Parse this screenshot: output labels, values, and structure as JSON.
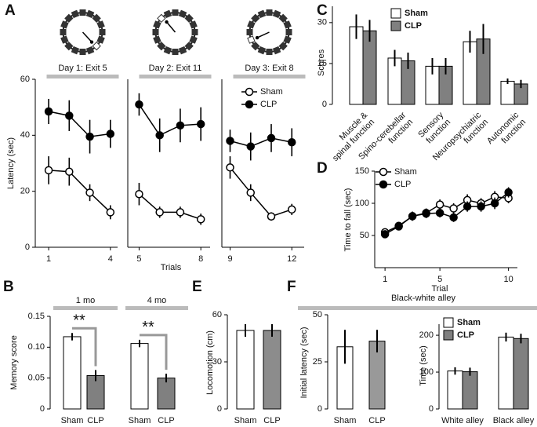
{
  "chart_data": [
    {
      "type": "line",
      "panel": "A",
      "ylabel": "Latency (sec)",
      "xlabel": "Trials",
      "ylim": [
        0,
        60
      ],
      "yticks": [
        0,
        20,
        40,
        60
      ],
      "legend": "upper right",
      "x": [
        1,
        2,
        3,
        4,
        5,
        6,
        7,
        8,
        9,
        10,
        11,
        12
      ],
      "subplots": [
        {
          "title": "Day 1: Exit 5",
          "xlim": [
            0.35,
            4.35
          ],
          "xticks": [
            1,
            4
          ]
        },
        {
          "title": "Day 2: Exit 11",
          "xlim": [
            4.45,
            8.45
          ],
          "xticks": [
            5,
            8
          ]
        },
        {
          "title": "Day 3: Exit 8",
          "xlim": [
            8.6,
            12.6
          ],
          "xticks": [
            9,
            12
          ]
        }
      ],
      "series": [
        {
          "name": "Sham",
          "color": "#ffffff",
          "values": [
            27.5,
            27,
            19.5,
            12.5,
            19,
            12.5,
            12.5,
            10,
            28.5,
            19.5,
            11,
            13.5
          ],
          "errors": [
            5,
            5,
            3,
            2.5,
            4,
            2,
            2,
            2,
            4,
            3,
            1.5,
            2
          ]
        },
        {
          "name": "CLP",
          "color": "#000000",
          "values": [
            48.5,
            47,
            39.5,
            40.5,
            51,
            40,
            43.5,
            44,
            38,
            36,
            39,
            37.5
          ],
          "errors": [
            4.5,
            5.5,
            6,
            5,
            4,
            6,
            6,
            6,
            4,
            5,
            5,
            5
          ]
        }
      ]
    },
    {
      "type": "bar",
      "panel": "B",
      "ylabel": "Memory score",
      "ylim": [
        0,
        0.15
      ],
      "yticks": [
        0,
        0.05,
        {
          "value": 0.1,
          "label": "0.10"
        },
        0.15
      ],
      "group_labels": [
        "1 mo",
        "4 mo"
      ],
      "annotations": [
        "**",
        "**"
      ],
      "categories": [
        "Sham",
        "CLP",
        "Sham",
        "CLP"
      ],
      "values": [
        0.117,
        0.054,
        0.106,
        0.05
      ],
      "errors": [
        0.006,
        0.009,
        0.006,
        0.007
      ],
      "colors": [
        "#ffffff",
        "#808080",
        "#ffffff",
        "#808080"
      ]
    },
    {
      "type": "bar",
      "panel": "C",
      "ylabel": "Scores",
      "ylim": [
        0,
        36
      ],
      "yticks": [
        0,
        15,
        30
      ],
      "legend": "upper center",
      "categories": [
        "Muscle &\nspinal function",
        "Spino-cerebellar\nfunction",
        "Sensory\nfunction",
        "Neuropsychiatric\nfunction",
        "Autonomic\nfunction"
      ],
      "series": [
        {
          "name": "Sham",
          "color": "#ffffff",
          "values": [
            28.5,
            17,
            14,
            23,
            8.5
          ],
          "errors": [
            4.5,
            3,
            3,
            4,
            1
          ]
        },
        {
          "name": "CLP",
          "color": "#808080",
          "values": [
            27,
            16,
            14,
            24,
            7.5
          ],
          "errors": [
            4,
            3,
            3,
            5.5,
            1.5
          ]
        }
      ]
    },
    {
      "type": "line",
      "panel": "D",
      "ylabel": "Time to fall (sec)",
      "xlabel": "Trial",
      "ylim": [
        0,
        150
      ],
      "yticks": [
        50,
        100,
        150
      ],
      "xlim": [
        0.25,
        10.65
      ],
      "xticks": [
        1,
        5,
        10
      ],
      "legend": "upper left",
      "x": [
        1,
        2,
        3,
        4,
        5,
        6,
        7,
        8,
        9,
        10
      ],
      "series": [
        {
          "name": "Sham",
          "color": "#ffffff",
          "values": [
            55,
            65,
            80,
            85,
            98,
            92,
            105,
            100,
            110,
            108
          ],
          "errors": [
            5,
            6,
            7,
            7,
            8,
            8,
            9,
            8,
            9,
            8
          ]
        },
        {
          "name": "CLP",
          "color": "#000000",
          "values": [
            52,
            64,
            80,
            84,
            85,
            78,
            95,
            95,
            100,
            117
          ],
          "errors": [
            4,
            6,
            7,
            7,
            7,
            7,
            8,
            8,
            9,
            8
          ]
        }
      ]
    },
    {
      "type": "bar",
      "panel": "E",
      "ylabel": "Locomotion (cm)",
      "ylim": [
        0,
        60
      ],
      "yticks": [
        0,
        30,
        60
      ],
      "categories": [
        "Sham",
        "CLP"
      ],
      "values": [
        50,
        50
      ],
      "errors": [
        4,
        4
      ],
      "colors": [
        "#ffffff",
        "#8c8c8c"
      ]
    },
    {
      "type": "bar",
      "panel": "F",
      "header": "Black-white alley",
      "ylabel": "Initial latency (sec)",
      "ylim": [
        0,
        50
      ],
      "yticks": [
        0,
        25,
        50
      ],
      "categories": [
        "Sham",
        "CLP"
      ],
      "values": [
        33,
        36
      ],
      "errors": [
        9,
        6
      ],
      "colors": [
        "#ffffff",
        "#999999"
      ]
    },
    {
      "type": "bar",
      "ylabel": "Time (sec)",
      "ylim": [
        0,
        230
      ],
      "yticks": [
        0,
        100,
        200
      ],
      "legend": "upper left",
      "categories": [
        "White alley",
        "Black alley"
      ],
      "series": [
        {
          "name": "Sham",
          "color": "#ffffff",
          "values": [
            103,
            195
          ],
          "errors": [
            10,
            12
          ]
        },
        {
          "name": "CLP",
          "color": "#808080",
          "values": [
            101,
            191
          ],
          "errors": [
            11,
            13
          ]
        }
      ]
    }
  ]
}
